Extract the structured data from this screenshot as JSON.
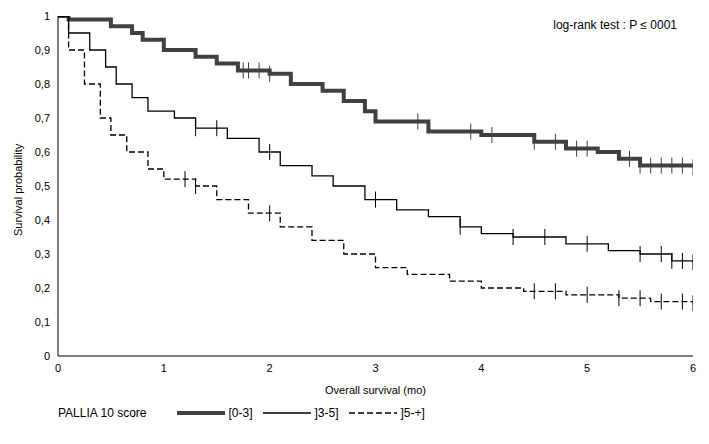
{
  "chart_data": {
    "type": "line",
    "annotation": "log-rank test : P ≤ 0001",
    "x_label": "Overall survival (mo)",
    "y_label": "Survival probability",
    "legend_title": "PALLIA 10 score",
    "legend": "bottom",
    "grid": false,
    "xlim": [
      0,
      6
    ],
    "xticks": [
      0,
      1,
      2,
      3,
      4,
      5,
      6
    ],
    "ylim": [
      0,
      1
    ],
    "yticks": [
      0,
      {
        "value": 0.1,
        "label": "0,1"
      },
      {
        "value": 0.2,
        "label": "0,2"
      },
      {
        "value": 0.3,
        "label": "0,3"
      },
      {
        "value": 0.4,
        "label": "0,4"
      },
      {
        "value": 0.5,
        "label": "0,5"
      },
      {
        "value": 0.6,
        "label": "0,6"
      },
      {
        "value": 0.7,
        "label": "0,7"
      },
      {
        "value": 0.8,
        "label": "0,8"
      },
      {
        "value": 0.9,
        "label": "0,9"
      },
      1
    ],
    "series": [
      {
        "name": "[0-3]",
        "color": "#404040",
        "line_style": "thick",
        "x": [
          0,
          0.1,
          0.5,
          0.7,
          0.8,
          1.0,
          1.3,
          1.5,
          1.7,
          2.0,
          2.2,
          2.5,
          2.7,
          2.9,
          3.0,
          3.5,
          4.0,
          4.5,
          4.8,
          5.1,
          5.3,
          5.5,
          6
        ],
        "values": [
          1,
          0.99,
          0.97,
          0.95,
          0.93,
          0.9,
          0.88,
          0.86,
          0.84,
          0.83,
          0.8,
          0.78,
          0.75,
          0.72,
          0.69,
          0.66,
          0.65,
          0.63,
          0.61,
          0.6,
          0.58,
          0.56,
          0.555
        ],
        "censored": [
          1.75,
          1.8,
          1.9,
          2.0,
          3.4,
          3.9,
          4.1,
          4.5,
          4.7,
          4.9,
          5.0,
          5.4,
          5.5,
          5.6,
          5.7,
          5.8,
          5.9,
          6.0
        ]
      },
      {
        "name": "]3-5]",
        "color": "#000000",
        "line_style": "solid",
        "x": [
          0,
          0.1,
          0.3,
          0.45,
          0.55,
          0.7,
          0.85,
          1.1,
          1.3,
          1.6,
          1.9,
          2.1,
          2.4,
          2.6,
          2.9,
          3.2,
          3.5,
          3.8,
          4.0,
          4.3,
          4.8,
          5.2,
          5.5,
          5.8,
          6
        ],
        "values": [
          1,
          0.95,
          0.9,
          0.85,
          0.8,
          0.76,
          0.72,
          0.7,
          0.67,
          0.64,
          0.6,
          0.56,
          0.53,
          0.5,
          0.46,
          0.43,
          0.41,
          0.38,
          0.36,
          0.35,
          0.33,
          0.31,
          0.3,
          0.28,
          0.275
        ],
        "censored": [
          1.3,
          1.5,
          2.0,
          3.0,
          3.8,
          4.3,
          4.6,
          5.0,
          5.5,
          5.7,
          5.8,
          5.9,
          6.0
        ]
      },
      {
        "name": "]5-+]",
        "color": "#000000",
        "line_style": "dashed",
        "x": [
          0,
          0.1,
          0.25,
          0.4,
          0.5,
          0.65,
          0.85,
          1.0,
          1.3,
          1.5,
          1.8,
          2.1,
          2.4,
          2.7,
          3.0,
          3.3,
          3.7,
          4.0,
          4.4,
          4.8,
          5.3,
          5.6,
          6
        ],
        "values": [
          1,
          0.9,
          0.8,
          0.7,
          0.65,
          0.6,
          0.55,
          0.52,
          0.5,
          0.46,
          0.42,
          0.38,
          0.34,
          0.3,
          0.26,
          0.24,
          0.22,
          0.2,
          0.19,
          0.18,
          0.17,
          0.16,
          0.155
        ],
        "censored": [
          1.2,
          1.3,
          2.0,
          4.5,
          4.7,
          5.0,
          5.3,
          5.5,
          5.7,
          5.9,
          6.0
        ]
      }
    ]
  }
}
